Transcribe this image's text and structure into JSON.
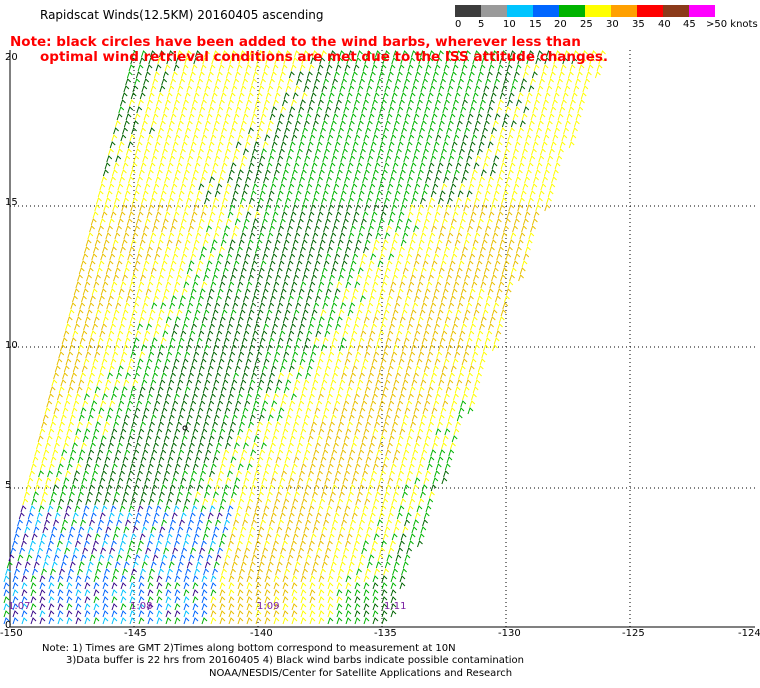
{
  "title": "Rapidscat Winds(12.5KM) 20160405 ascending",
  "note_lines": [
    "Note: black circles have been added to the wind barbs, wherever less than",
    "optimal wind retrieval conditions are met due to the ISS attitude changes."
  ],
  "legend": {
    "labels": [
      "0",
      "5",
      "10",
      "15",
      "20",
      "25",
      "30",
      "35",
      "40",
      "45",
      ">50 knots"
    ],
    "colors": [
      "#3c3c3c",
      "#9a9a9a",
      "#00c4ff",
      "#0066ff",
      "#00b400",
      "#ffff00",
      "#ffa000",
      "#ff0000",
      "#8b3a1a",
      "#ff00ff",
      "#3a0a8c"
    ]
  },
  "y_axis_labels": [
    "20",
    "15",
    "10",
    "5",
    "0"
  ],
  "x_axis_labels": [
    "-150",
    "-145",
    "-140",
    "-135",
    "-130",
    "-125",
    "-124"
  ],
  "time_labels": [
    "1:07",
    "1:08",
    "1:09",
    "1:11"
  ],
  "footer": {
    "line1": "Note: 1) Times are GMT 2)Times along bottom correspond to measurement at 10N",
    "line2": "3)Data buffer is 22 hrs from 20160405 4) Black wind barbs indicate possible contamination",
    "line3": "NOAA/NESDIS/Center for Satellite Applications and Research"
  }
}
